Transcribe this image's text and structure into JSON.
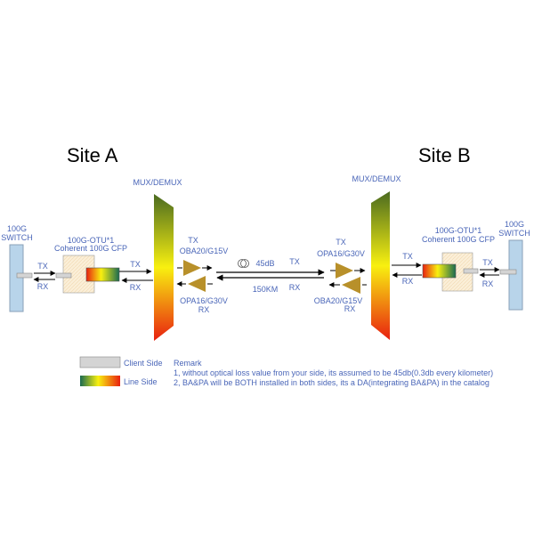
{
  "site_a": {
    "title": "Site A"
  },
  "site_b": {
    "title": "Site B"
  },
  "left": {
    "switch": {
      "line1": "100G",
      "line2": "SWITCH"
    },
    "otu": {
      "line1": "100G-OTU*1",
      "line2": "Coherent 100G CFP"
    },
    "client_tx": "TX",
    "client_rx": "RX",
    "line_tx": "TX",
    "line_rx": "RX",
    "mux_label": "MUX/DEMUX",
    "amp_tx": {
      "dir": "TX",
      "model": "OBA20/G15V"
    },
    "amp_rx": {
      "dir": "RX",
      "model": "OPA16/G30V"
    }
  },
  "link": {
    "loss": "45dB",
    "distance": "150KM",
    "tx": "TX",
    "rx": "RX",
    "icon": "fiber-coil-icon"
  },
  "right": {
    "switch": {
      "line1": "100G",
      "line2": "SWITCH"
    },
    "otu": {
      "line1": "100G-OTU*1",
      "line2": "Coherent 100G CFP"
    },
    "client_tx": "TX",
    "client_rx": "RX",
    "line_tx": "TX",
    "line_rx": "RX",
    "mux_label": "MUX/DEMUX",
    "amp_tx": {
      "dir": "TX",
      "model": "OPA16/G30V"
    },
    "amp_rx": {
      "dir": "RX",
      "model": "OBA20/G15V"
    }
  },
  "legend": {
    "client": "Client Side",
    "line": "Line Side"
  },
  "remark": {
    "title": "Remark",
    "lines": [
      "1, without optical loss value from your side, its assumed to be 45db(0.3db every kilometer)",
      "2, BA&PA will be BOTH installed in both sides, its a DA(integrating BA&PA) in the catalog"
    ]
  },
  "colors": {
    "text": "#4a66b8",
    "switch": "#b8d4ea",
    "amplifier": "#b8902a",
    "otu": "#fbefd8",
    "port": "#d4d4d4"
  }
}
